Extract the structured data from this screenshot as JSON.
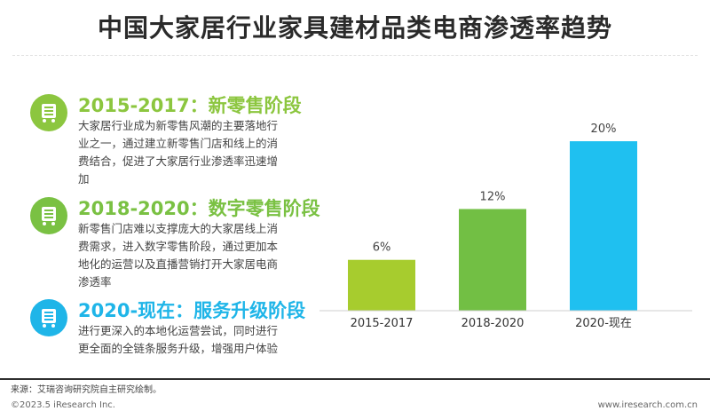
{
  "title": "中国大家居行业家具建材品类电商渗透率趋势",
  "stages": [
    {
      "title": "2015-2017：新零售阶段",
      "desc": "大家居行业成为新零售风潮的主要落地行业之一，通过建立新零售门店和线上的消费结合，促进了大家居行业渗透率迅速增加",
      "color": "#8cc63f",
      "icon": "shopping-cart-icon"
    },
    {
      "title": "2018-2020：数字零售阶段",
      "desc": "新零售门店难以支撑庞大的大家居线上消费需求，进入数字零售阶段，通过更加本地化的运营以及直播营销打开大家居电商渗透率",
      "color": "#7ac143",
      "icon": "shopping-cart-icon"
    },
    {
      "title": "2020-现在：服务升级阶段",
      "desc": "进行更深入的本地化运营尝试，同时进行更全面的全链条服务升级，增强用户体验",
      "color": "#1fb5e8",
      "icon": "shopping-cart-icon"
    }
  ],
  "chart_data": {
    "type": "bar",
    "categories": [
      "2015-2017",
      "2018-2020",
      "2020-现在"
    ],
    "values": [
      6,
      12,
      20
    ],
    "value_labels": [
      "6%",
      "12%",
      "20%"
    ],
    "bar_colors": [
      "#a7cc2e",
      "#72bf44",
      "#1fc0f0"
    ],
    "ylim": [
      0,
      22
    ],
    "grid": false
  },
  "footer": {
    "source": "来源：艾瑞咨询研究院自主研究绘制。",
    "copyright": "©2023.5 iResearch Inc.",
    "website": "www.iresearch.com.cn"
  }
}
